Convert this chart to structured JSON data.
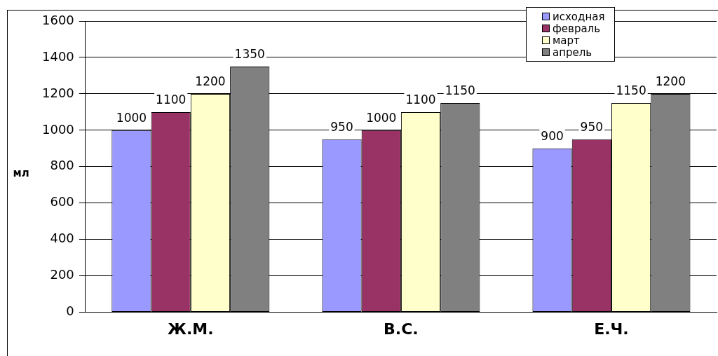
{
  "chart_data": {
    "type": "bar",
    "ylabel": "мл",
    "categories": [
      "Ж.М.",
      "В.С.",
      "Е.Ч."
    ],
    "series": [
      {
        "name": "исходная",
        "color": "#9999ff",
        "values": [
          1000,
          950,
          900
        ]
      },
      {
        "name": "февраль",
        "color": "#993366",
        "values": [
          1100,
          1000,
          950
        ]
      },
      {
        "name": "март",
        "color": "#ffffcc",
        "values": [
          1200,
          1100,
          1150
        ]
      },
      {
        "name": "апрель",
        "color": "#808080",
        "values": [
          1350,
          1150,
          1200
        ]
      }
    ],
    "ylim": [
      0,
      1600
    ],
    "yticks": [
      0,
      200,
      400,
      600,
      800,
      1000,
      1200,
      1400,
      1600
    ],
    "grid": "y",
    "legend": "top right",
    "data_labels": true
  }
}
